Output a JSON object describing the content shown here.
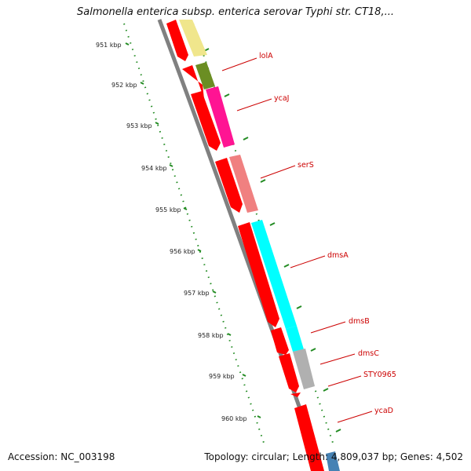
{
  "title": "Salmonella enterica subsp. enterica serovar Typhi str. CT18,...",
  "footer": {
    "accession": "Accession: NC_003198",
    "summary": "Topology: circular; Length: 4,809,037 bp; Genes: 4,502"
  },
  "kbp_ticks": [
    "951 kbp",
    "952 kbp",
    "953 kbp",
    "954 kbp",
    "955 kbp",
    "956 kbp",
    "957 kbp",
    "958 kbp",
    "959 kbp",
    "960 kbp"
  ],
  "genes": [
    {
      "name": "lolA",
      "color": "#6b8e23"
    },
    {
      "name": "ycaJ",
      "color": "#ff1493"
    },
    {
      "name": "serS",
      "color": "#f08080"
    },
    {
      "name": "dmsA",
      "color": "#00ffff"
    },
    {
      "name": "dmsB",
      "color": "#00ffff"
    },
    {
      "name": "dmsC",
      "color": "#b0b0b0"
    },
    {
      "name": "STY0965",
      "color": "#ff0000"
    },
    {
      "name": "ycaD",
      "color": "#4682b4"
    }
  ],
  "colors": {
    "cds": "#ff0000",
    "backbone": "#808080",
    "tick": "#228b22",
    "label": "#cc0000",
    "top_feature": "#f0e68c"
  }
}
